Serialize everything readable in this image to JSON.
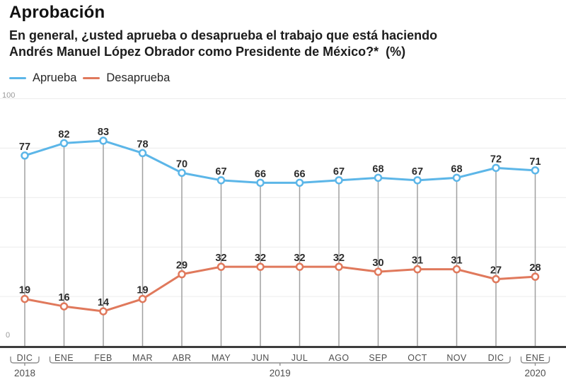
{
  "header": {
    "title": "Aprobación",
    "subtitle_lines": [
      "En general, ¿usted aprueba o desaprueba el trabajo que está haciendo",
      "Andrés Manuel López Obrador como Presidente de México?*  (%)"
    ]
  },
  "chart_data": {
    "type": "line",
    "title": "Aprobación",
    "categories": [
      "DIC",
      "ENE",
      "FEB",
      "MAR",
      "ABR",
      "MAY",
      "JUN",
      "JUL",
      "AGO",
      "SEP",
      "OCT",
      "NOV",
      "DIC",
      "ENE"
    ],
    "year_groups": [
      {
        "label": "2018",
        "from": 0,
        "to": 0
      },
      {
        "label": "2019",
        "from": 1,
        "to": 12
      },
      {
        "label": "2020",
        "from": 13,
        "to": 13
      }
    ],
    "series": [
      {
        "name": "Aprueba",
        "color": "#5cb6e8",
        "values": [
          77,
          82,
          83,
          78,
          70,
          67,
          66,
          66,
          67,
          68,
          67,
          68,
          72,
          71
        ]
      },
      {
        "name": "Desaprueba",
        "color": "#e0795c",
        "values": [
          19,
          16,
          14,
          19,
          29,
          32,
          32,
          32,
          32,
          30,
          31,
          31,
          27,
          28
        ]
      }
    ],
    "ylim": [
      0,
      100
    ],
    "gridline_step": 20,
    "grid": true,
    "y_tick_labels": [
      "100",
      "0"
    ],
    "legend_position": "top-left",
    "marker": "open-circle",
    "colors": {
      "value_label": "#2c2c2c",
      "axis_line": "#3c3c3c",
      "stem_line": "#a0a0a0",
      "gridline": "#ececec",
      "tick_text": "#9a9a9a",
      "month_text": "#4f4f4f",
      "bracket": "#8f8f8f"
    }
  }
}
